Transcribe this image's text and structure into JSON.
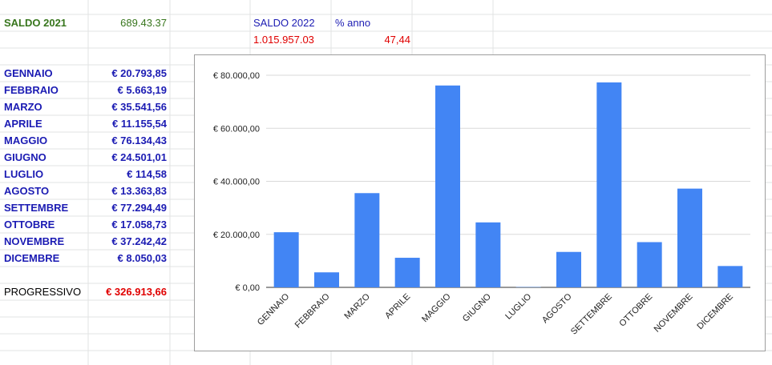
{
  "summary": {
    "saldo2021_label": "SALDO 2021",
    "saldo2021_value": "689.43.37",
    "saldo2022_label": "SALDO 2022",
    "saldo2022_value": "1.015.957.03",
    "pct_label": "% anno",
    "pct_value": "47,44"
  },
  "months": [
    {
      "name": "GENNAIO",
      "amount": "€ 20.793,85"
    },
    {
      "name": "FEBBRAIO",
      "amount": "€ 5.663,19"
    },
    {
      "name": "MARZO",
      "amount": "€ 35.541,56"
    },
    {
      "name": "APRILE",
      "amount": "€ 11.155,54"
    },
    {
      "name": "MAGGIO",
      "amount": "€ 76.134,43"
    },
    {
      "name": "GIUGNO",
      "amount": "€ 24.501,01"
    },
    {
      "name": "LUGLIO",
      "amount": "€ 114,58"
    },
    {
      "name": "AGOSTO",
      "amount": "€ 13.363,83"
    },
    {
      "name": "SETTEMBRE",
      "amount": "€ 77.294,49"
    },
    {
      "name": "OTTOBRE",
      "amount": "€ 17.058,73"
    },
    {
      "name": "NOVEMBRE",
      "amount": "€ 37.242,42"
    },
    {
      "name": "DICEMBRE",
      "amount": "€ 8.050,03"
    }
  ],
  "progressivo": {
    "label": "PROGRESSIVO",
    "value": "€ 326.913,66"
  },
  "chart_data": {
    "type": "bar",
    "categories": [
      "GENNAIO",
      "FEBBRAIO",
      "MARZO",
      "APRILE",
      "MAGGIO",
      "GIUGNO",
      "LUGLIO",
      "AGOSTO",
      "SETTEMBRE",
      "OTTOBRE",
      "NOVEMBRE",
      "DICEMBRE"
    ],
    "values": [
      20793.85,
      5663.19,
      35541.56,
      11155.54,
      76134.43,
      24501.01,
      114.58,
      13363.83,
      77294.49,
      17058.73,
      37242.42,
      8050.03
    ],
    "ylim": [
      0,
      80000
    ],
    "yticks": [
      0,
      20000,
      40000,
      60000,
      80000
    ],
    "ytick_labels": [
      "€ 0,00",
      "€ 20.000,00",
      "€ 40.000,00",
      "€ 60.000,00",
      "€ 80.000,00"
    ],
    "bar_color": "#4285f4",
    "grid": true,
    "legend": "none"
  }
}
